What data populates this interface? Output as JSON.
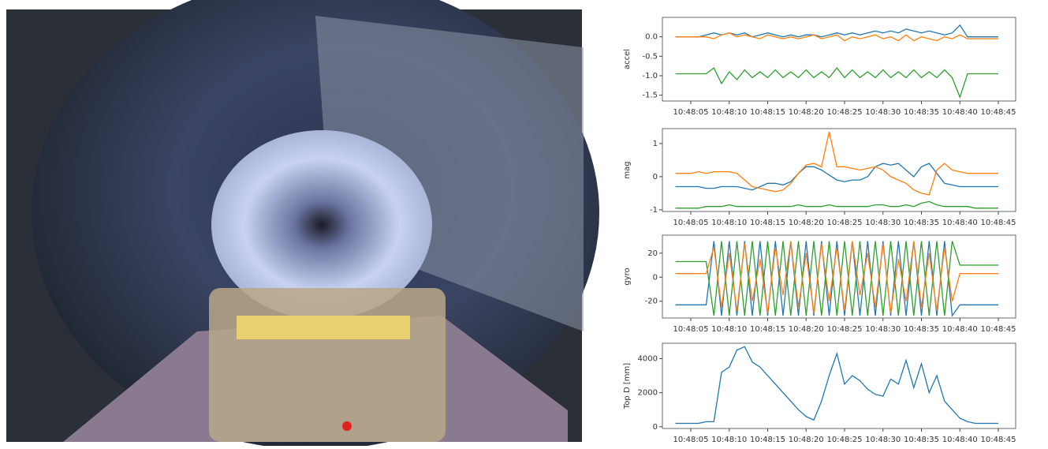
{
  "chart_data": [
    {
      "type": "line",
      "ylabel": "accel",
      "categories": [
        null,
        null,
        "10:48:05",
        null,
        null,
        null,
        null,
        "10:48:10",
        null,
        null,
        null,
        null,
        "10:48:15",
        null,
        null,
        null,
        null,
        "10:48:20",
        null,
        null,
        null,
        null,
        "10:48:25",
        null,
        null,
        null,
        null,
        "10:48:30",
        null,
        null,
        null,
        null,
        "10:48:35",
        null,
        null,
        null,
        null,
        "10:48:40",
        null,
        null,
        null,
        null,
        "10:48:45"
      ],
      "series": [
        {
          "color": "#1f77b4",
          "values": [
            0,
            0,
            0,
            0,
            0.05,
            0.1,
            0.05,
            0.1,
            0.05,
            0.1,
            0,
            0.05,
            0.1,
            0.05,
            0,
            0.05,
            0,
            0.05,
            0.05,
            0,
            0.05,
            0.1,
            0.05,
            0.1,
            0.05,
            0.1,
            0.15,
            0.1,
            0.15,
            0.1,
            0.2,
            0.15,
            0.1,
            0.15,
            0.1,
            0.05,
            0.1,
            0.3,
            0,
            0,
            0,
            0,
            0
          ]
        },
        {
          "color": "#ff7f0e",
          "values": [
            0,
            0,
            0,
            0,
            0,
            -0.05,
            0.05,
            0.1,
            0,
            0.05,
            0,
            -0.05,
            0.05,
            0,
            -0.05,
            0,
            -0.05,
            0,
            0.05,
            -0.05,
            0,
            0.05,
            -0.1,
            0,
            -0.05,
            0,
            0.05,
            -0.05,
            0,
            -0.1,
            0.05,
            -0.1,
            0,
            -0.05,
            -0.1,
            0,
            -0.05,
            0.05,
            -0.05,
            -0.05,
            -0.05,
            -0.05,
            -0.05
          ]
        },
        {
          "color": "#2ca02c",
          "values": [
            -0.95,
            -0.95,
            -0.95,
            -0.95,
            -0.95,
            -0.8,
            -1.2,
            -0.9,
            -1.1,
            -0.85,
            -1.05,
            -0.9,
            -1.05,
            -0.85,
            -1.05,
            -0.9,
            -1.05,
            -0.85,
            -1.05,
            -0.9,
            -1.05,
            -0.8,
            -1.05,
            -0.85,
            -1.05,
            -0.9,
            -1.05,
            -0.85,
            -1.05,
            -0.9,
            -1.05,
            -0.85,
            -1.05,
            -0.9,
            -1.05,
            -0.85,
            -1.05,
            -1.55,
            -0.95,
            -0.95,
            -0.95,
            -0.95,
            -0.95
          ]
        }
      ],
      "ylim": [
        -1.65,
        0.5
      ],
      "yticks": [
        {
          "value": 0,
          "label": "0.0"
        },
        -0.5,
        {
          "value": -1,
          "label": "-1.0"
        },
        -1.5
      ]
    },
    {
      "type": "line",
      "ylabel": "mag",
      "categories": [
        null,
        null,
        "10:48:05",
        null,
        null,
        null,
        null,
        "10:48:10",
        null,
        null,
        null,
        null,
        "10:48:15",
        null,
        null,
        null,
        null,
        "10:48:20",
        null,
        null,
        null,
        null,
        "10:48:25",
        null,
        null,
        null,
        null,
        "10:48:30",
        null,
        null,
        null,
        null,
        "10:48:35",
        null,
        null,
        null,
        null,
        "10:48:40",
        null,
        null,
        null,
        null,
        "10:48:45"
      ],
      "series": [
        {
          "color": "#1f77b4",
          "values": [
            -0.3,
            -0.3,
            -0.3,
            -0.3,
            -0.35,
            -0.35,
            -0.3,
            -0.3,
            -0.3,
            -0.35,
            -0.4,
            -0.3,
            -0.2,
            -0.2,
            -0.25,
            -0.15,
            0.1,
            0.3,
            0.3,
            0.2,
            0.05,
            -0.1,
            -0.15,
            -0.1,
            -0.1,
            0,
            0.3,
            0.4,
            0.35,
            0.4,
            0.2,
            0,
            0.3,
            0.4,
            0.1,
            -0.2,
            -0.25,
            -0.3,
            -0.3,
            -0.3,
            -0.3,
            -0.3,
            -0.3
          ]
        },
        {
          "color": "#ff7f0e",
          "values": [
            0.1,
            0.1,
            0.1,
            0.15,
            0.1,
            0.15,
            0.15,
            0.15,
            0.1,
            -0.1,
            -0.3,
            -0.35,
            -0.4,
            -0.45,
            -0.4,
            -0.2,
            0.1,
            0.35,
            0.4,
            0.3,
            1.35,
            0.3,
            0.3,
            0.25,
            0.2,
            0.25,
            0.3,
            0.2,
            0,
            -0.1,
            -0.2,
            -0.4,
            -0.5,
            -0.55,
            0.2,
            0.4,
            0.2,
            0.15,
            0.1,
            0.1,
            0.1,
            0.1,
            0.1
          ]
        },
        {
          "color": "#2ca02c",
          "values": [
            -0.95,
            -0.95,
            -0.95,
            -0.95,
            -0.9,
            -0.9,
            -0.9,
            -0.85,
            -0.9,
            -0.9,
            -0.9,
            -0.9,
            -0.9,
            -0.9,
            -0.9,
            -0.9,
            -0.85,
            -0.9,
            -0.9,
            -0.9,
            -0.85,
            -0.9,
            -0.9,
            -0.9,
            -0.9,
            -0.9,
            -0.85,
            -0.85,
            -0.9,
            -0.9,
            -0.85,
            -0.9,
            -0.8,
            -0.75,
            -0.85,
            -0.9,
            -0.9,
            -0.9,
            -0.9,
            -0.95,
            -0.95,
            -0.95,
            -0.95
          ]
        }
      ],
      "ylim": [
        -1.05,
        1.45
      ],
      "yticks": [
        -1,
        0,
        1
      ]
    },
    {
      "type": "line",
      "ylabel": "gyro",
      "categories": [
        null,
        null,
        "10:48:05",
        null,
        null,
        null,
        null,
        "10:48:10",
        null,
        null,
        null,
        null,
        "10:48:15",
        null,
        null,
        null,
        null,
        "10:48:20",
        null,
        null,
        null,
        null,
        "10:48:25",
        null,
        null,
        null,
        null,
        "10:48:30",
        null,
        null,
        null,
        null,
        "10:48:35",
        null,
        null,
        null,
        null,
        "10:48:40",
        null,
        null,
        null,
        null,
        "10:48:45"
      ],
      "series": [
        {
          "color": "#1f77b4",
          "values": [
            -23,
            -23,
            -23,
            -23,
            -23,
            30,
            -32,
            30,
            -32,
            30,
            -32,
            30,
            -32,
            30,
            -32,
            30,
            -32,
            30,
            -32,
            30,
            -32,
            30,
            -32,
            30,
            -32,
            30,
            -32,
            30,
            -32,
            30,
            -32,
            30,
            -32,
            30,
            -32,
            30,
            -32,
            -23,
            -23,
            -23,
            -23,
            -23,
            -23
          ]
        },
        {
          "color": "#2ca02c",
          "values": [
            13,
            13,
            13,
            13,
            13,
            -32,
            30,
            -32,
            30,
            -32,
            30,
            -32,
            30,
            -32,
            30,
            -32,
            30,
            -32,
            30,
            -32,
            30,
            -32,
            30,
            -32,
            30,
            -32,
            30,
            -32,
            30,
            -32,
            30,
            -32,
            30,
            -32,
            30,
            -32,
            30,
            10,
            10,
            10,
            10,
            10,
            10
          ]
        },
        {
          "color": "#ff7f0e",
          "values": [
            3,
            3,
            3,
            3,
            3,
            25,
            -25,
            20,
            -28,
            28,
            -20,
            15,
            -30,
            25,
            -15,
            30,
            -25,
            20,
            -30,
            28,
            -20,
            25,
            -28,
            30,
            -15,
            20,
            -25,
            28,
            -30,
            15,
            -20,
            30,
            -25,
            20,
            -28,
            25,
            -20,
            3,
            3,
            3,
            3,
            3,
            3
          ]
        }
      ],
      "ylim": [
        -34,
        35
      ],
      "yticks": [
        -20,
        0,
        20
      ]
    },
    {
      "type": "line",
      "ylabel": "Top D [mm]",
      "categories": [
        null,
        null,
        "10:48:05",
        null,
        null,
        null,
        null,
        "10:48:10",
        null,
        null,
        null,
        null,
        "10:48:15",
        null,
        null,
        null,
        null,
        "10:48:20",
        null,
        null,
        null,
        null,
        "10:48:25",
        null,
        null,
        null,
        null,
        "10:48:30",
        null,
        null,
        null,
        null,
        "10:48:35",
        null,
        null,
        null,
        null,
        "10:48:40",
        null,
        null,
        null,
        null,
        "10:48:45"
      ],
      "series": [
        {
          "color": "#1f77b4",
          "values": [
            200,
            200,
            200,
            200,
            300,
            300,
            3200,
            3500,
            4500,
            4700,
            3800,
            3500,
            3000,
            2500,
            2000,
            1500,
            1000,
            600,
            400,
            1500,
            3000,
            4300,
            2500,
            3000,
            2700,
            2200,
            1900,
            1800,
            2800,
            2500,
            3900,
            2300,
            3700,
            2000,
            3000,
            1500,
            1000,
            500,
            300,
            200,
            200,
            200,
            200
          ]
        }
      ],
      "ylim": [
        -100,
        4900
      ],
      "yticks": [
        0,
        2000,
        4000
      ]
    }
  ]
}
